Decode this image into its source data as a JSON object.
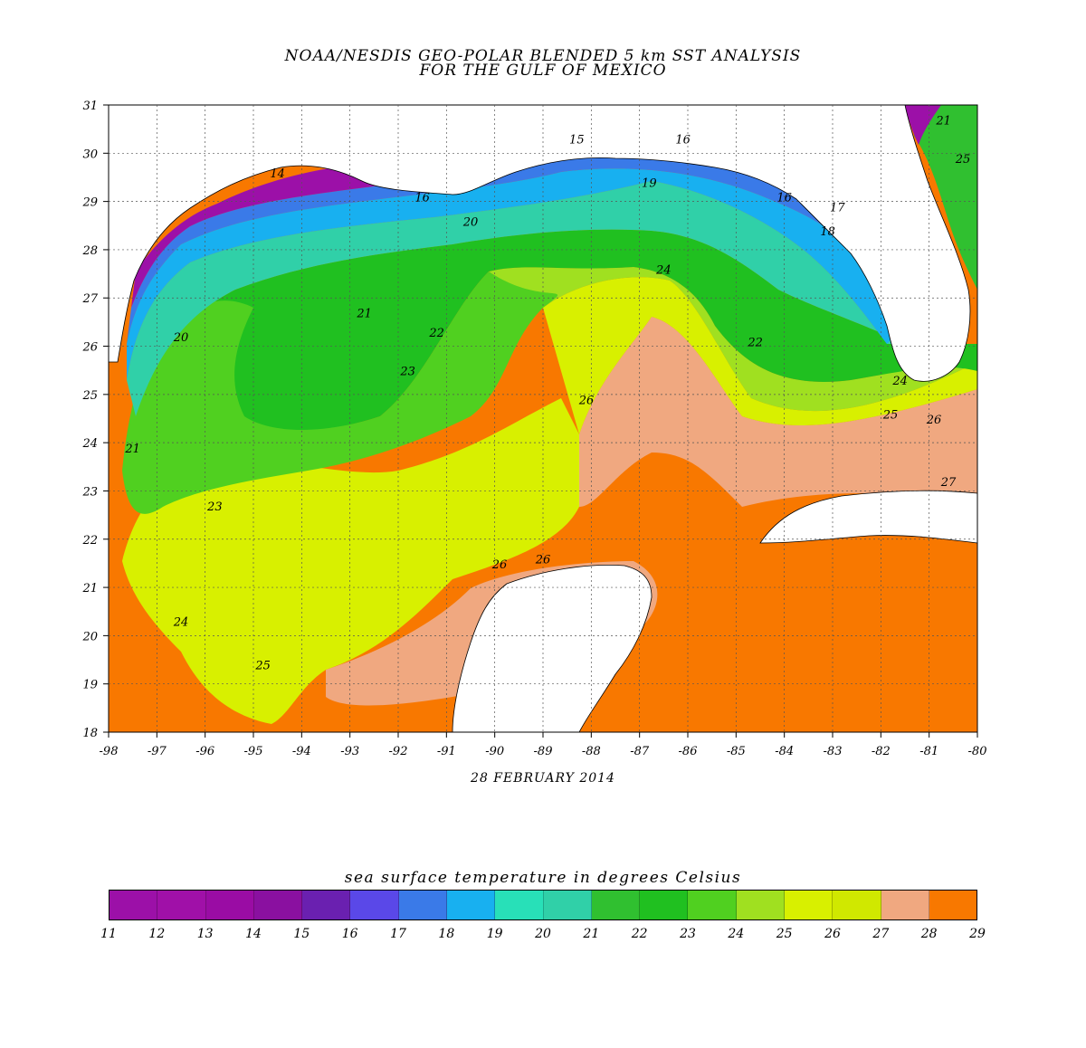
{
  "title": {
    "line1": "NOAA/NESDIS GEO-POLAR BLENDED 5 km SST ANALYSIS",
    "line2": "FOR THE GULF OF MEXICO"
  },
  "date": "28 FEBRUARY 2014",
  "colorbar": {
    "title": "sea surface temperature in degrees Celsius",
    "labels": [
      "11",
      "12",
      "13",
      "14",
      "15",
      "16",
      "17",
      "18",
      "19",
      "20",
      "21",
      "22",
      "23",
      "24",
      "25",
      "26",
      "27",
      "28",
      "29"
    ],
    "colors": [
      "#9c10a8",
      "#a010a8",
      "#9a0ca4",
      "#8a10a0",
      "#6a20b0",
      "#5a48e8",
      "#3a7ae8",
      "#18b0f0",
      "#28e0b8",
      "#30d0a8",
      "#30c030",
      "#20c020",
      "#50d020",
      "#a0e020",
      "#d8f000",
      "#d0e800",
      "#f0a880",
      "#f87800",
      "#f84800"
    ]
  },
  "map": {
    "lon_range": [
      -98,
      -80
    ],
    "lat_range": [
      18,
      31
    ],
    "lon_ticks": [
      "-98",
      "-97",
      "-96",
      "-95",
      "-94",
      "-93",
      "-92",
      "-91",
      "-90",
      "-89",
      "-88",
      "-87",
      "-86",
      "-85",
      "-84",
      "-83",
      "-82",
      "-81",
      "-80"
    ],
    "lat_ticks": [
      "31",
      "30",
      "29",
      "28",
      "27",
      "26",
      "25",
      "24",
      "23",
      "22",
      "21",
      "20",
      "19",
      "18"
    ],
    "land_color": "#ffffff",
    "grid": "dotted",
    "contour_labels": [
      {
        "text": "14",
        "lon": -94.5,
        "lat": 29.5
      },
      {
        "text": "15",
        "lon": -88.3,
        "lat": 30.2
      },
      {
        "text": "16",
        "lon": -86.1,
        "lat": 30.2
      },
      {
        "text": "16",
        "lon": -91.5,
        "lat": 29.0
      },
      {
        "text": "19",
        "lon": -86.8,
        "lat": 29.3
      },
      {
        "text": "20",
        "lon": -90.5,
        "lat": 28.5
      },
      {
        "text": "16",
        "lon": -84.0,
        "lat": 29.0
      },
      {
        "text": "18",
        "lon": -83.1,
        "lat": 28.3
      },
      {
        "text": "17",
        "lon": -82.9,
        "lat": 28.8
      },
      {
        "text": "21",
        "lon": -92.7,
        "lat": 26.6
      },
      {
        "text": "22",
        "lon": -91.2,
        "lat": 26.2
      },
      {
        "text": "23",
        "lon": -91.8,
        "lat": 25.4
      },
      {
        "text": "20",
        "lon": -96.5,
        "lat": 26.1
      },
      {
        "text": "24",
        "lon": -86.5,
        "lat": 27.5
      },
      {
        "text": "22",
        "lon": -84.6,
        "lat": 26.0
      },
      {
        "text": "26",
        "lon": -88.1,
        "lat": 24.8
      },
      {
        "text": "24",
        "lon": -81.6,
        "lat": 25.2
      },
      {
        "text": "25",
        "lon": -81.8,
        "lat": 24.5
      },
      {
        "text": "26",
        "lon": -80.9,
        "lat": 24.4
      },
      {
        "text": "27",
        "lon": -80.6,
        "lat": 23.1
      },
      {
        "text": "21",
        "lon": -97.5,
        "lat": 23.8
      },
      {
        "text": "23",
        "lon": -95.8,
        "lat": 22.6
      },
      {
        "text": "24",
        "lon": -96.5,
        "lat": 20.2
      },
      {
        "text": "25",
        "lon": -94.8,
        "lat": 19.3
      },
      {
        "text": "26",
        "lon": -89.9,
        "lat": 21.4
      },
      {
        "text": "26",
        "lon": -89.0,
        "lat": 21.5
      },
      {
        "text": "21",
        "lon": -80.7,
        "lat": 30.6
      },
      {
        "text": "25",
        "lon": -80.3,
        "lat": 29.8
      }
    ]
  }
}
